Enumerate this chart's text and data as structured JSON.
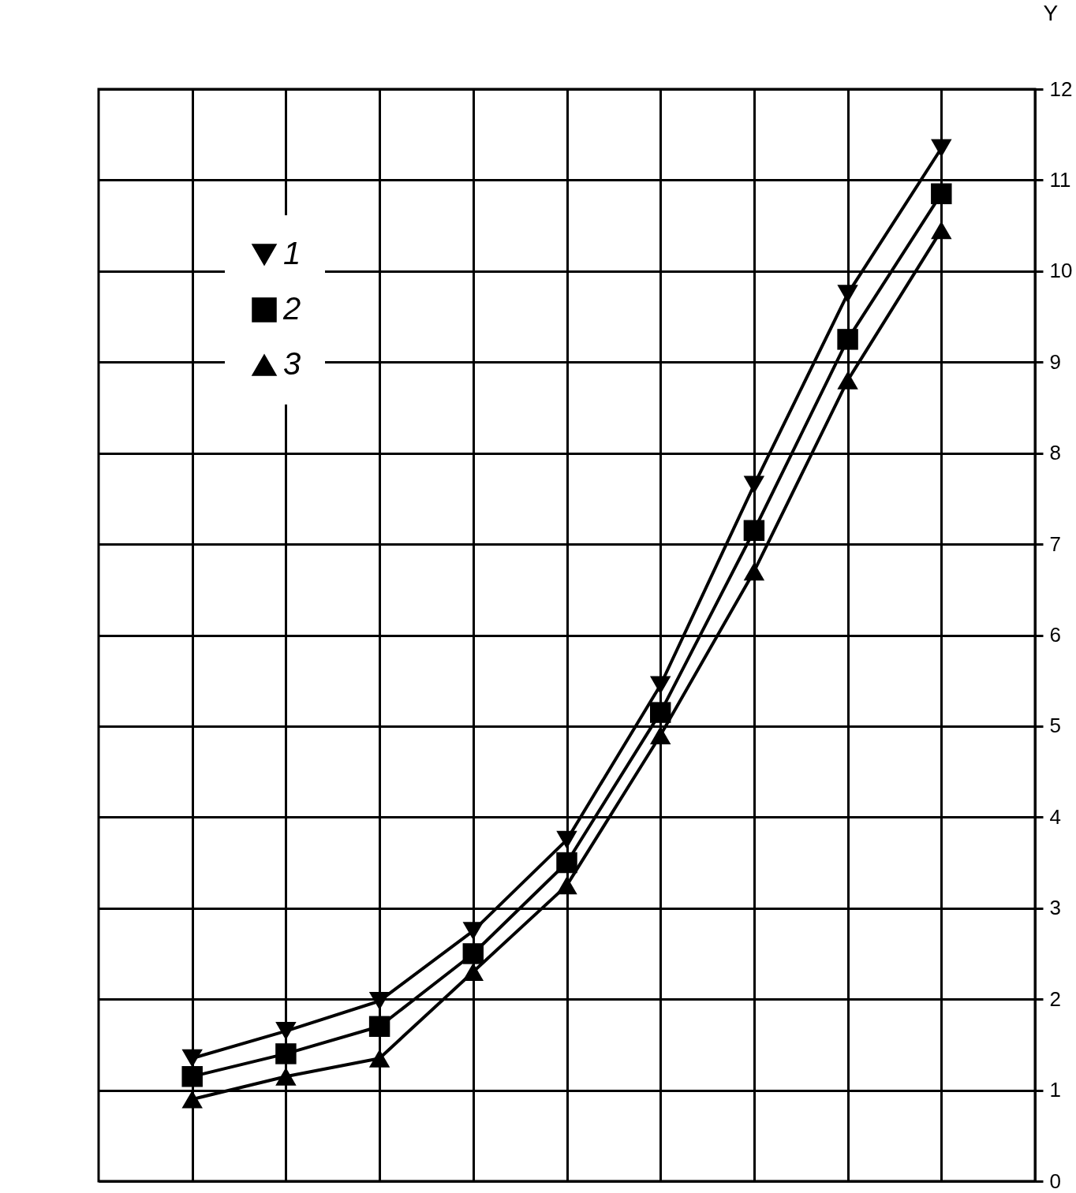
{
  "chart_data": {
    "type": "line",
    "ylabel": "Y",
    "categories": [
      null,
      null,
      null,
      null,
      null,
      null,
      null,
      null,
      null
    ],
    "series": [
      {
        "name": "1",
        "color": "#000000",
        "marker": "triangle-down",
        "values": [
          1.35,
          1.65,
          1.98,
          2.75,
          3.75,
          5.45,
          7.65,
          9.75,
          11.35
        ]
      },
      {
        "name": "2",
        "color": "#000000",
        "marker": "square",
        "values": [
          1.15,
          1.4,
          1.7,
          2.5,
          3.5,
          5.15,
          7.15,
          9.25,
          10.85
        ]
      },
      {
        "name": "3",
        "color": "#000000",
        "marker": "triangle",
        "values": [
          0.9,
          1.15,
          1.35,
          2.3,
          3.25,
          4.9,
          6.7,
          8.8,
          10.45
        ]
      }
    ],
    "ylim": [
      0,
      12
    ],
    "yticks": [
      0,
      1,
      2,
      3,
      4,
      5,
      6,
      7,
      8,
      9,
      10,
      11,
      12
    ],
    "grid": true,
    "legend": "top left",
    "tick_labels": "y",
    "line_style": "solid"
  }
}
